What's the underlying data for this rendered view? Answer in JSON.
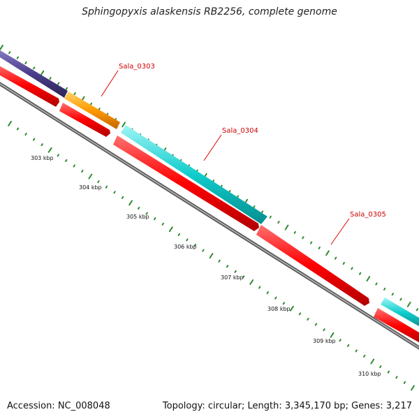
{
  "title": "Sphingopyxis alaskensis RB2256, complete genome",
  "footer": {
    "accession": "Accession: NC_008048",
    "summary": "Topology: circular; Length: 3,345,170 bp; Genes: 3,217"
  },
  "scale_labels": [
    "303 kbp",
    "304 kbp",
    "305 kbp",
    "306 kbp",
    "307 kbp",
    "308 kbp",
    "309 kbp",
    "310 kbp"
  ],
  "genes": [
    {
      "label": "",
      "color": "#4b3f8c"
    },
    {
      "label": "Sala_0303",
      "color": "#ff8c00"
    },
    {
      "label": "Sala_0304",
      "color": "#00c8c8"
    },
    {
      "label": "",
      "color": "#00c8c8"
    },
    {
      "label": "Sala_0305",
      "color": "#ff0000"
    }
  ],
  "colors": {
    "gene_label": "#cc0000",
    "callout_line": "#dd0000",
    "tick_mark": "#2e8b2e",
    "backbone": "#808080",
    "cds": "#ff0000"
  }
}
